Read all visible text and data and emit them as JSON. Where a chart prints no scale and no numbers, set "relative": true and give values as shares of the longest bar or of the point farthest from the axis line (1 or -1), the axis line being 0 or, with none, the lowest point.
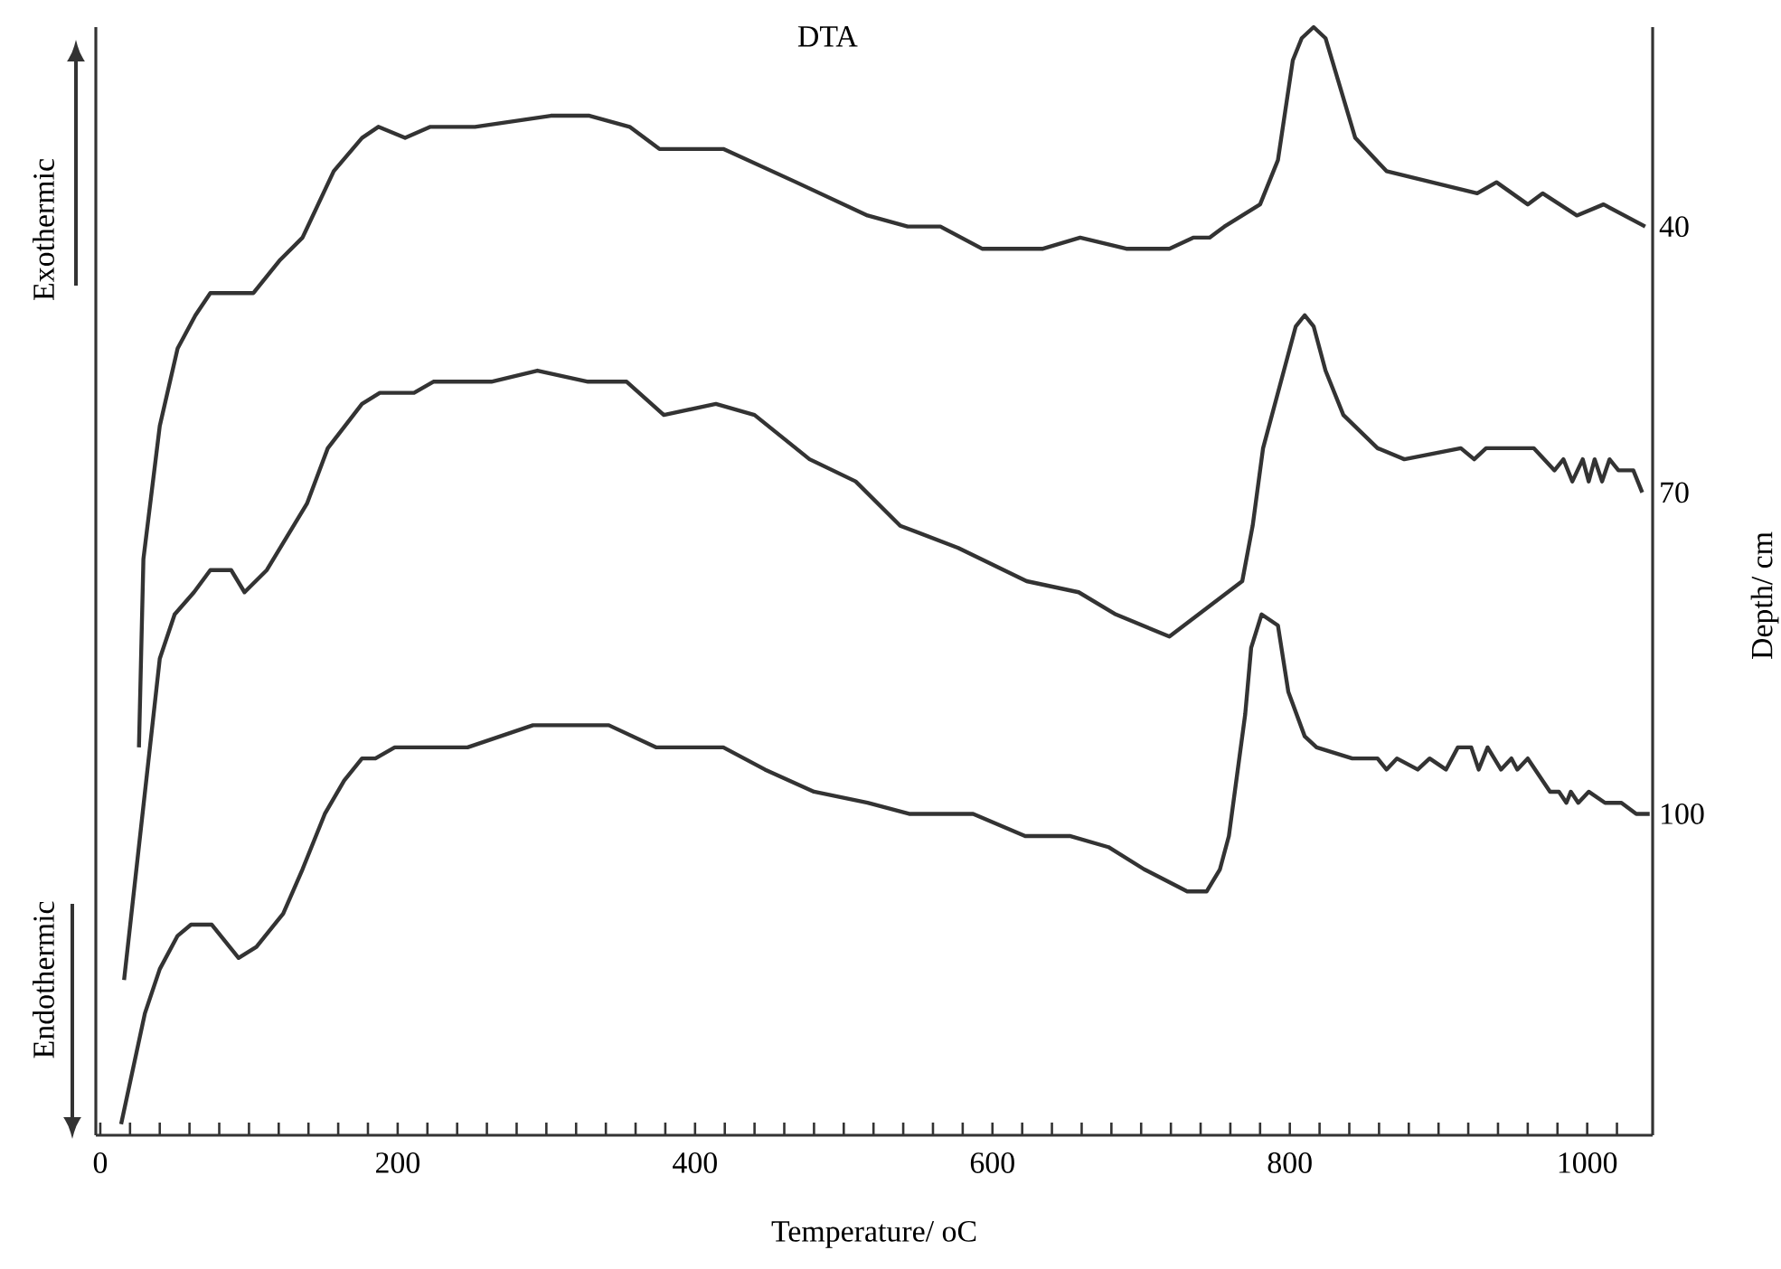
{
  "chart_data": {
    "type": "line",
    "title": "DTA",
    "xlabel": "Temperature/ oC",
    "y2label": "Depth/ cm",
    "annotations": [
      "Exothermic",
      "Endothermic"
    ],
    "relative": true,
    "xlim": [
      -3,
      1044
    ],
    "xticks": [
      0,
      {
        "value": 20,
        "label": null
      },
      {
        "value": 40,
        "label": null
      },
      {
        "value": 60,
        "label": null
      },
      {
        "value": 80,
        "label": null
      },
      {
        "value": 100,
        "label": null
      },
      {
        "value": 120,
        "label": null
      },
      {
        "value": 140,
        "label": null
      },
      {
        "value": 160,
        "label": null
      },
      {
        "value": 180,
        "label": null
      },
      200,
      {
        "value": 220,
        "label": null
      },
      {
        "value": 240,
        "label": null
      },
      {
        "value": 260,
        "label": null
      },
      {
        "value": 280,
        "label": null
      },
      {
        "value": 300,
        "label": null
      },
      {
        "value": 320,
        "label": null
      },
      {
        "value": 340,
        "label": null
      },
      {
        "value": 360,
        "label": null
      },
      {
        "value": 380,
        "label": null
      },
      400,
      {
        "value": 420,
        "label": null
      },
      {
        "value": 440,
        "label": null
      },
      {
        "value": 460,
        "label": null
      },
      {
        "value": 480,
        "label": null
      },
      {
        "value": 500,
        "label": null
      },
      {
        "value": 520,
        "label": null
      },
      {
        "value": 540,
        "label": null
      },
      {
        "value": 560,
        "label": null
      },
      {
        "value": 580,
        "label": null
      },
      600,
      {
        "value": 620,
        "label": null
      },
      {
        "value": 640,
        "label": null
      },
      {
        "value": 660,
        "label": null
      },
      {
        "value": 680,
        "label": null
      },
      {
        "value": 700,
        "label": null
      },
      {
        "value": 720,
        "label": null
      },
      {
        "value": 740,
        "label": null
      },
      {
        "value": 760,
        "label": null
      },
      {
        "value": 780,
        "label": null
      },
      800,
      {
        "value": 820,
        "label": null
      },
      {
        "value": 840,
        "label": null
      },
      {
        "value": 860,
        "label": null
      },
      {
        "value": 880,
        "label": null
      },
      {
        "value": 900,
        "label": null
      },
      {
        "value": 920,
        "label": null
      },
      {
        "value": 940,
        "label": null
      },
      {
        "value": 960,
        "label": null
      },
      {
        "value": 980,
        "label": null
      },
      1000,
      {
        "value": 1020,
        "label": null
      }
    ],
    "series": [
      {
        "name": "40",
        "color": "#333333",
        "x": [
          26,
          29,
          40,
          52,
          64,
          74,
          91,
          103,
          121,
          136,
          157,
          176,
          187,
          205,
          222,
          252,
          303,
          329,
          356,
          376,
          391,
          419,
          468,
          516,
          543,
          565,
          593,
          634,
          659,
          690,
          719,
          735,
          746,
          756,
          780,
          792,
          802,
          808,
          816,
          824,
          844,
          865,
          926,
          939,
          960,
          970,
          993,
          1011,
          1039
        ],
        "values": [
          0.35,
          0.52,
          0.64,
          0.71,
          0.74,
          0.76,
          0.76,
          0.76,
          0.79,
          0.81,
          0.87,
          0.9,
          0.91,
          0.9,
          0.91,
          0.91,
          0.92,
          0.92,
          0.91,
          0.89,
          0.89,
          0.89,
          0.86,
          0.83,
          0.82,
          0.82,
          0.8,
          0.8,
          0.81,
          0.8,
          0.8,
          0.81,
          0.81,
          0.82,
          0.84,
          0.88,
          0.97,
          0.99,
          1.0,
          0.99,
          0.9,
          0.87,
          0.85,
          0.86,
          0.84,
          0.85,
          0.83,
          0.84,
          0.82
        ]
      },
      {
        "name": "70",
        "color": "#333333",
        "x": [
          16,
          40,
          50,
          63,
          74,
          88,
          97,
          112,
          139,
          153,
          176,
          188,
          211,
          224,
          263,
          294,
          328,
          354,
          379,
          414,
          440,
          477,
          508,
          538,
          577,
          623,
          658,
          683,
          719,
          768,
          775,
          782,
          796,
          804,
          810,
          816,
          824,
          836,
          859,
          877,
          915,
          924,
          932,
          964,
          978,
          984,
          990,
          997,
          1001,
          1005,
          1010,
          1015,
          1021,
          1031,
          1037
        ],
        "values": [
          0.14,
          0.43,
          0.47,
          0.49,
          0.51,
          0.51,
          0.49,
          0.51,
          0.57,
          0.62,
          0.66,
          0.67,
          0.67,
          0.68,
          0.68,
          0.69,
          0.68,
          0.68,
          0.65,
          0.66,
          0.65,
          0.61,
          0.59,
          0.55,
          0.53,
          0.5,
          0.49,
          0.47,
          0.45,
          0.5,
          0.55,
          0.62,
          0.69,
          0.73,
          0.74,
          0.73,
          0.69,
          0.65,
          0.62,
          0.61,
          0.62,
          0.61,
          0.62,
          0.62,
          0.6,
          0.61,
          0.59,
          0.61,
          0.59,
          0.61,
          0.59,
          0.61,
          0.6,
          0.6,
          0.58
        ]
      },
      {
        "name": "100",
        "color": "#333333",
        "x": [
          14,
          30,
          40,
          52,
          61,
          75,
          87,
          93,
          105,
          123,
          136,
          151,
          164,
          176,
          185,
          198,
          215,
          239,
          247,
          269,
          291,
          306,
          342,
          374,
          398,
          419,
          447,
          480,
          516,
          544,
          587,
          622,
          652,
          678,
          702,
          731,
          744,
          753,
          759,
          770,
          774,
          781,
          792,
          799,
          810,
          818,
          842,
          859,
          865,
          872,
          886,
          894,
          905,
          913,
          922,
          927,
          933,
          942,
          949,
          953,
          960,
          975,
          981,
          986,
          989,
          994,
          1001,
          1012,
          1023,
          1033,
          1042
        ],
        "values": [
          0.01,
          0.11,
          0.15,
          0.18,
          0.19,
          0.19,
          0.17,
          0.16,
          0.17,
          0.2,
          0.24,
          0.29,
          0.32,
          0.34,
          0.34,
          0.35,
          0.35,
          0.35,
          0.35,
          0.36,
          0.37,
          0.37,
          0.37,
          0.35,
          0.35,
          0.35,
          0.33,
          0.31,
          0.3,
          0.29,
          0.29,
          0.27,
          0.27,
          0.26,
          0.24,
          0.22,
          0.22,
          0.24,
          0.27,
          0.38,
          0.44,
          0.47,
          0.46,
          0.4,
          0.36,
          0.35,
          0.34,
          0.34,
          0.33,
          0.34,
          0.33,
          0.34,
          0.33,
          0.35,
          0.35,
          0.33,
          0.35,
          0.33,
          0.34,
          0.33,
          0.34,
          0.31,
          0.31,
          0.3,
          0.31,
          0.3,
          0.31,
          0.3,
          0.3,
          0.29,
          0.29
        ]
      }
    ]
  }
}
